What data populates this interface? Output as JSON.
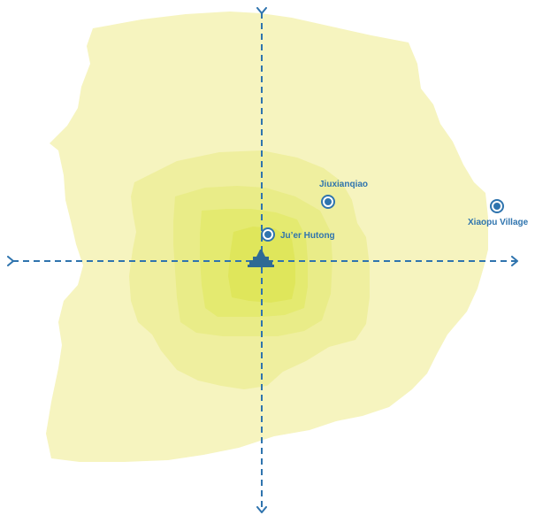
{
  "colors": {
    "ring_outer": "#f6f4bf",
    "ring_2": "#efef9f",
    "ring_3": "#e9ec88",
    "ring_4": "#e4ea70",
    "ring_center": "#dfe65b",
    "axis": "#2f74ae",
    "label": "#2f74ae",
    "landmark": "#2f6a94"
  },
  "icons": {
    "axis_arrows": "chevron-arrow-icon",
    "place_marker": "ring-dot-marker-icon",
    "center_landmark": "city-gate-icon"
  },
  "places": [
    {
      "id": "jiuxianqiao",
      "label": "Jiuxianqiao"
    },
    {
      "id": "juer-hutong",
      "label": "Ju’er Hutong"
    },
    {
      "id": "xiaopu-village",
      "label": "Xiaopu Village"
    }
  ]
}
